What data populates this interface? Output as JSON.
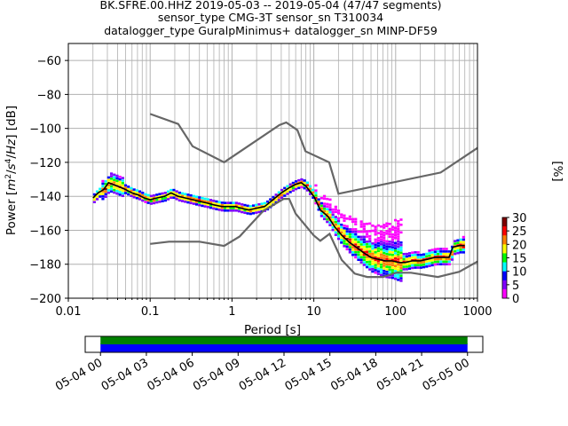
{
  "chart_data": [
    {
      "type": "psd",
      "title_lines": [
        "BK.SFRE.00.HHZ   2019-05-03 -- 2019-05-04  (47/47 segments)",
        "sensor_type CMG-3T sensor_sn T310034",
        "datalogger_type GuralpMinimus+ datalogger_sn MINP-DF59"
      ],
      "xlabel": "Period [s]",
      "ylabel_prefix": "Power [",
      "ylabel_suffix": "] [dB]",
      "xscale": "log",
      "xlim": [
        0.01,
        1000
      ],
      "ylim": [
        -200,
        -50
      ],
      "grid": true,
      "xticks": [
        {
          "value": 0.01,
          "label": "0.01"
        },
        {
          "value": 0.1,
          "label": "0.1"
        },
        {
          "value": 1,
          "label": "1"
        },
        {
          "value": 10,
          "label": "10"
        },
        {
          "value": 100,
          "label": "100"
        },
        {
          "value": 1000,
          "label": "1000"
        }
      ],
      "yticks": [
        {
          "value": -60,
          "label": "−60"
        },
        {
          "value": -80,
          "label": "−80"
        },
        {
          "value": -100,
          "label": "−100"
        },
        {
          "value": -120,
          "label": "−120"
        },
        {
          "value": -140,
          "label": "−140"
        },
        {
          "value": -160,
          "label": "−160"
        },
        {
          "value": -180,
          "label": "−180"
        },
        {
          "value": -200,
          "label": "−200"
        }
      ],
      "reference_models": [
        {
          "x": [
            0.1,
            0.22,
            0.33,
            0.8,
            3.8,
            4.6,
            6.3,
            7.9,
            15.4,
            20,
            354.8,
            1000
          ],
          "y": [
            -91.5,
            -97.4,
            -110.5,
            -120,
            -98,
            -96.5,
            -101,
            -113.5,
            -120,
            -138.5,
            -126,
            -111.5
          ]
        },
        {
          "x": [
            0.1,
            0.17,
            0.4,
            0.8,
            1.24,
            2.4,
            4.3,
            5,
            6,
            10,
            12,
            15.6,
            21.9,
            31.6,
            45,
            70,
            101,
            154,
            328,
            600,
            1000
          ],
          "y": [
            -168,
            -166.7,
            -166.7,
            -169.2,
            -163.7,
            -148.6,
            -141.5,
            -141.5,
            -150.2,
            -163.1,
            -166.2,
            -162.1,
            -177.5,
            -185.5,
            -187.5,
            -187.5,
            -185,
            -185,
            -187.5,
            -184.4,
            -178.4
          ]
        }
      ],
      "median": {
        "x": [
          0.02,
          0.023,
          0.027,
          0.031,
          0.035,
          0.04,
          0.05,
          0.06,
          0.07,
          0.085,
          0.1,
          0.12,
          0.15,
          0.18,
          0.22,
          0.27,
          0.33,
          0.4,
          0.5,
          0.6,
          0.75,
          0.9,
          1.1,
          1.3,
          1.6,
          2,
          2.5,
          3,
          4,
          5,
          6,
          7,
          8,
          10,
          12,
          15,
          18,
          22,
          27,
          33,
          40,
          50,
          60,
          75,
          90,
          110,
          130,
          160,
          200,
          250,
          300,
          350,
          400,
          450,
          500,
          600,
          700
        ],
        "y": [
          -141,
          -138,
          -136,
          -132,
          -133,
          -134,
          -136,
          -138,
          -139,
          -141,
          -142,
          -141,
          -140,
          -138,
          -140,
          -141,
          -142,
          -143,
          -144,
          -145,
          -146,
          -146,
          -146,
          -147,
          -148,
          -147,
          -146,
          -143,
          -138,
          -135,
          -133,
          -132,
          -134,
          -140,
          -148,
          -152,
          -158,
          -163,
          -167,
          -170,
          -173,
          -176,
          -177,
          -178,
          -178,
          -179,
          -179,
          -178,
          -178,
          -177,
          -176,
          -176,
          -176,
          -176,
          -170,
          -169,
          -169
        ]
      },
      "colorbar": {
        "label": "[%]",
        "min": 0,
        "max": 30,
        "ticks": [
          "0",
          "5",
          "10",
          "15",
          "20",
          "25",
          "30"
        ],
        "colors": [
          "#ffffff",
          "#ff00ff",
          "#7f00ff",
          "#0000ff",
          "#00ffff",
          "#00ff00",
          "#ffff00",
          "#ff8000",
          "#ff0000",
          "#7f0000"
        ]
      }
    },
    {
      "type": "coverage",
      "x_range": [
        "2019-05-03 23:00",
        "2019-05-05 01:00"
      ],
      "data_span": [
        "2019-05-04 00:00",
        "2019-05-05 00:00"
      ],
      "series": [
        {
          "name": "data",
          "color": "#0000ff",
          "start": "2019-05-04 00:00",
          "end": "2019-05-05 00:00"
        },
        {
          "name": "psd",
          "color": "#008000",
          "start": "2019-05-04 00:00",
          "end": "2019-05-05 00:00"
        }
      ],
      "xticks": [
        "05-04 00",
        "05-04 03",
        "05-04 06",
        "05-04 09",
        "05-04 12",
        "05-04 15",
        "05-04 18",
        "05-04 21",
        "05-05 00"
      ]
    }
  ]
}
